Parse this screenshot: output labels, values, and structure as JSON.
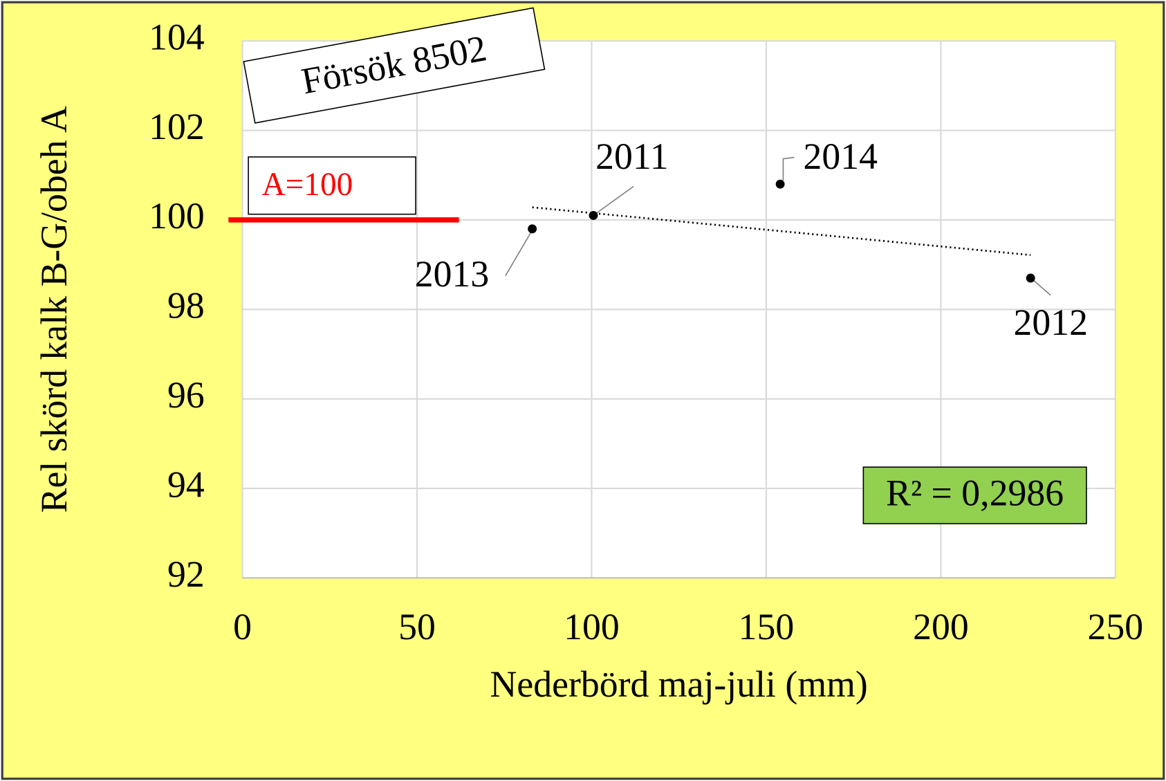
{
  "chart_data": {
    "type": "scatter",
    "title": "Försök 8502",
    "x_label": "Nederbörd maj-juli (mm)",
    "y_label": "Rel skörd kalk B-G/obeh  A",
    "x": [
      83,
      100.5,
      154,
      225.7
    ],
    "values": [
      99.8,
      100.1,
      100.8,
      98.7
    ],
    "labels": [
      "2013",
      "2011",
      "2014",
      "2012"
    ],
    "color": "#000000",
    "xlim": [
      0,
      250
    ],
    "xticks": [
      0,
      50,
      100,
      150,
      200,
      250
    ],
    "ylim": [
      92,
      104
    ],
    "yticks": [
      92,
      94,
      96,
      98,
      100,
      102,
      104
    ],
    "grid": true,
    "trendline": {
      "type": "linear",
      "style": "dotted",
      "color": "#000000"
    },
    "r_squared_label": "R² = 0,2986",
    "reference_line": {
      "y": 100,
      "x": [
        -4,
        62
      ],
      "label": "A=100",
      "color": "#ff0000"
    }
  }
}
